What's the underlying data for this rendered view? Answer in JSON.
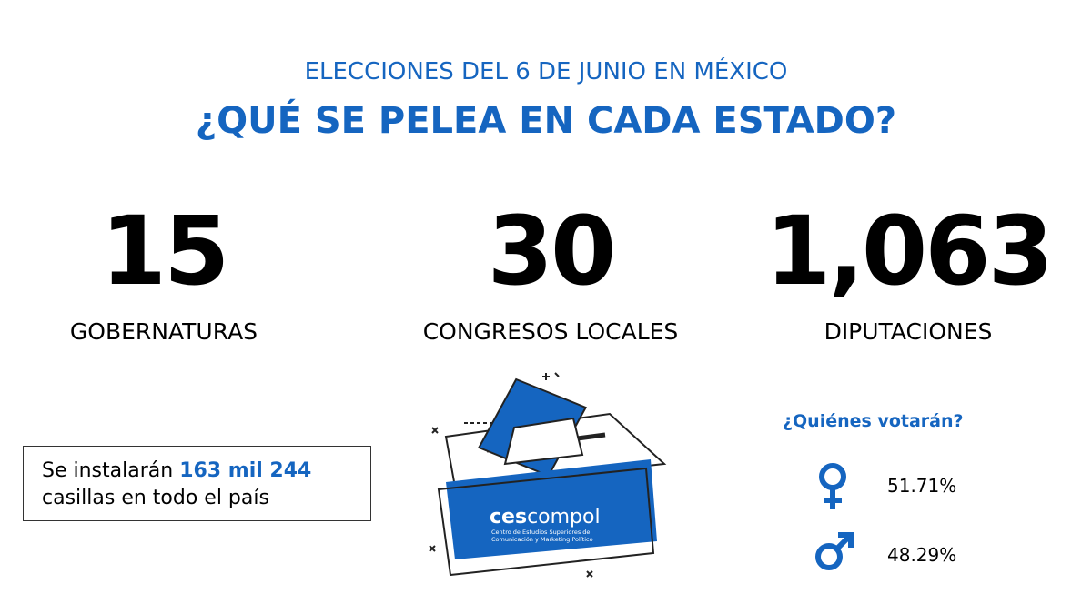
{
  "header": {
    "subtitle": "ELECCIONES DEL 6 DE JUNIO EN MÉXICO",
    "title": "¿QUÉ SE PELEA EN CADA ESTADO?"
  },
  "stats": [
    {
      "number": "15",
      "label": "GOBERNATURAS"
    },
    {
      "number": "30",
      "label": "CONGRESOS LOCALES"
    },
    {
      "number": "1,063",
      "label": "DIPUTACIONES"
    }
  ],
  "note": {
    "before": "Se instalarán",
    "highlight": "163 mil 244",
    "after": "casillas en todo el país"
  },
  "logo": {
    "bold": "ces",
    "light": "compol",
    "line1": "Centro de Estudios Superiores de",
    "line2": "Comunicación y Marketing Político"
  },
  "voters": {
    "title": "¿Quiénes votarán?",
    "women": "51.71%",
    "men": "48.29%"
  }
}
